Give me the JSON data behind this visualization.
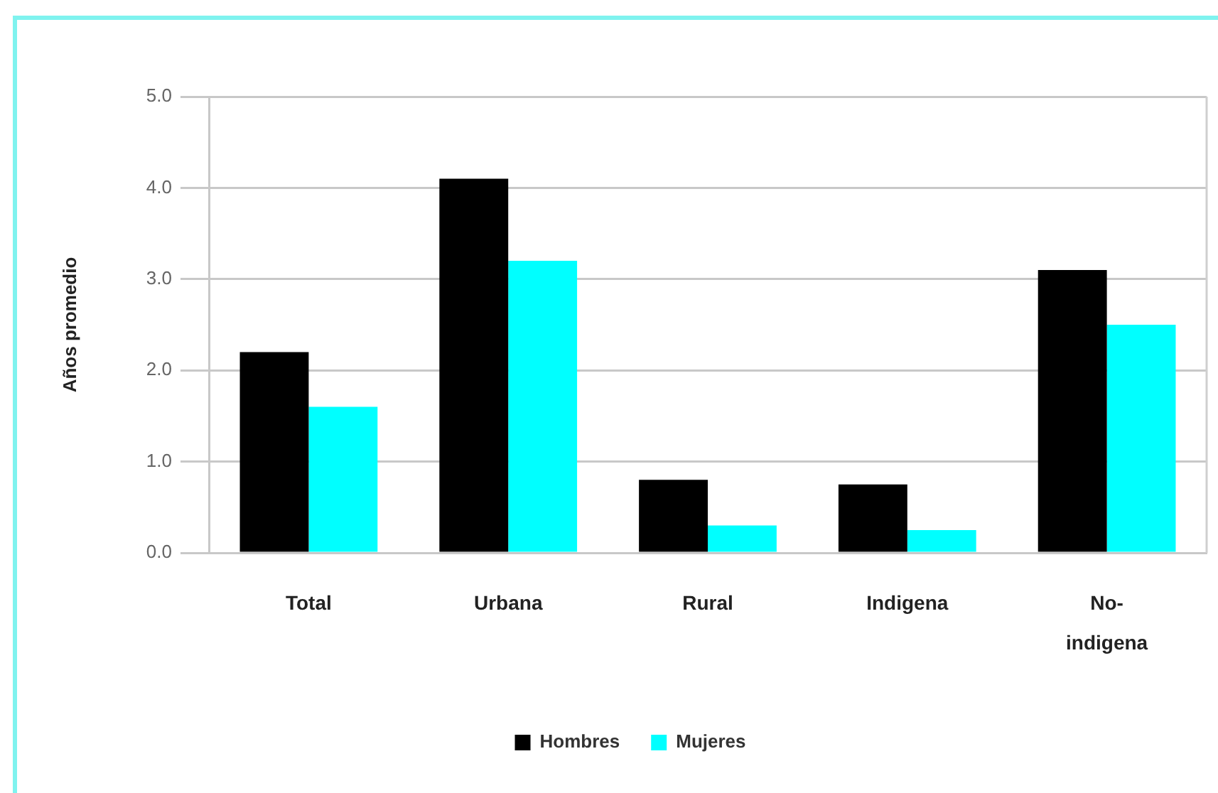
{
  "chart_data": {
    "type": "bar",
    "categories": [
      "Total",
      "Urbana",
      "Rural",
      "Indigena",
      "No-indigena"
    ],
    "series": [
      {
        "name": "Hombres",
        "color": "#000000",
        "values": [
          2.2,
          4.1,
          0.8,
          0.75,
          3.1
        ]
      },
      {
        "name": "Mujeres",
        "color": "#00ffff",
        "values": [
          1.6,
          3.2,
          0.3,
          0.25,
          2.5
        ]
      }
    ],
    "ylabel": "Años promedio",
    "ylim": [
      0,
      5
    ],
    "yticks": [
      {
        "value": 0,
        "label": "0.0"
      },
      {
        "value": 1,
        "label": "1.0"
      },
      {
        "value": 2,
        "label": "2.0"
      },
      {
        "value": 3,
        "label": "3.0"
      },
      {
        "value": 4,
        "label": "4.0"
      },
      {
        "value": 5,
        "label": "5.0"
      }
    ],
    "grid": "y",
    "legend": "bottom"
  }
}
